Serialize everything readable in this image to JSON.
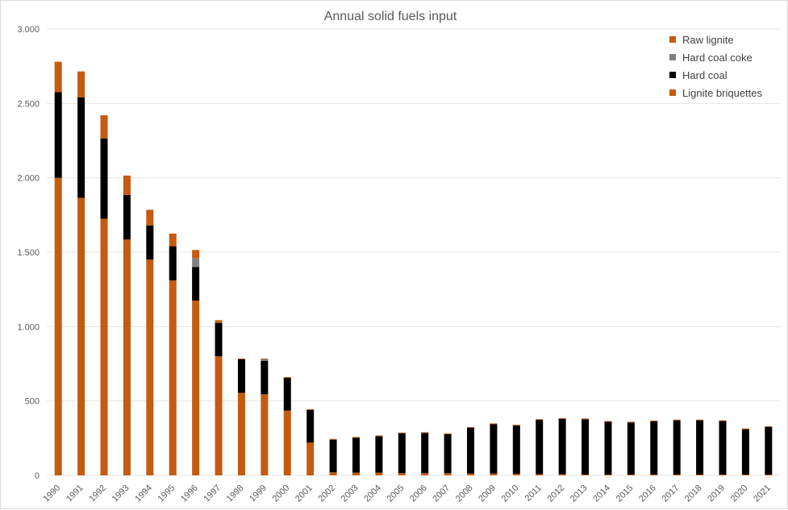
{
  "chart_data": {
    "type": "bar",
    "stacked": true,
    "title": "Annual solid fuels input",
    "xlabel": "",
    "ylabel": "",
    "ylim": [
      0,
      3000
    ],
    "yticks": [
      0,
      500,
      1000,
      1500,
      2000,
      2500,
      3000
    ],
    "ytick_labels": [
      "0",
      "500",
      "1.000",
      "1.500",
      "2.000",
      "2.500",
      "3.000"
    ],
    "grid": true,
    "legend_position": "top-right",
    "categories": [
      "1990",
      "1991",
      "1992",
      "1993",
      "1994",
      "1995",
      "1996",
      "1997",
      "1998",
      "1999",
      "2000",
      "2001",
      "2002",
      "2003",
      "2004",
      "2005",
      "2006",
      "2007",
      "2008",
      "2009",
      "2010",
      "2011",
      "2012",
      "2013",
      "2014",
      "2015",
      "2016",
      "2017",
      "2018",
      "2019",
      "2020",
      "2021"
    ],
    "series": [
      {
        "name": "Lignite briquettes",
        "color": "#c55a11",
        "values": [
          2000,
          1865,
          1725,
          1585,
          1450,
          1310,
          1175,
          800,
          555,
          545,
          435,
          220,
          20,
          18,
          18,
          15,
          15,
          15,
          12,
          12,
          10,
          8,
          8,
          5,
          5,
          5,
          5,
          5,
          5,
          5,
          5,
          5
        ]
      },
      {
        "name": "Hard coal",
        "color": "#000000",
        "values": [
          575,
          675,
          540,
          300,
          230,
          230,
          225,
          225,
          225,
          225,
          220,
          220,
          220,
          235,
          245,
          268,
          270,
          262,
          308,
          332,
          325,
          365,
          372,
          372,
          355,
          350,
          358,
          365,
          365,
          360,
          305,
          320
        ]
      },
      {
        "name": "Hard coal coke",
        "color": "#808080",
        "values": [
          0,
          0,
          0,
          0,
          0,
          0,
          60,
          0,
          0,
          10,
          0,
          0,
          0,
          0,
          0,
          0,
          0,
          0,
          0,
          0,
          0,
          0,
          0,
          0,
          0,
          0,
          0,
          0,
          0,
          0,
          0,
          0
        ]
      },
      {
        "name": "Raw lignite",
        "color": "#c55a11",
        "values": [
          205,
          175,
          155,
          130,
          105,
          85,
          55,
          18,
          5,
          5,
          5,
          5,
          5,
          5,
          5,
          5,
          5,
          5,
          5,
          5,
          5,
          5,
          5,
          5,
          5,
          5,
          5,
          5,
          5,
          5,
          5,
          5
        ]
      }
    ],
    "legend_order": [
      "Raw lignite",
      "Hard coal coke",
      "Hard coal",
      "Lignite briquettes"
    ]
  }
}
